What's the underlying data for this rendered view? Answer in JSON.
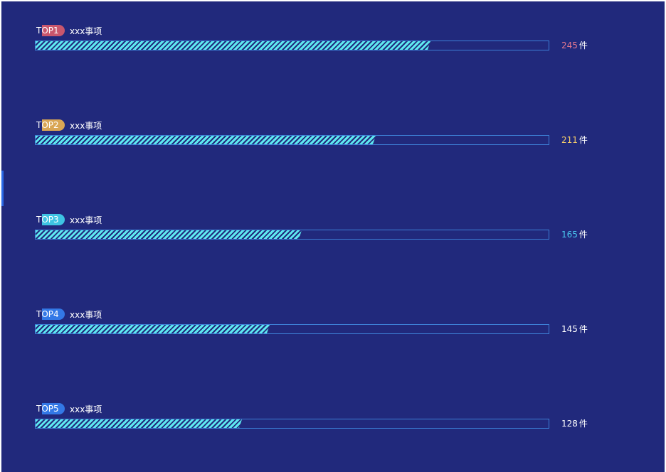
{
  "chart_data": {
    "type": "bar",
    "orientation": "horizontal",
    "categories": [
      "TOP1",
      "TOP2",
      "TOP3",
      "TOP4",
      "TOP5"
    ],
    "names": [
      "xxx事项",
      "xxx事项",
      "xxx事项",
      "xxx事项",
      "xxx事项"
    ],
    "values": [
      245,
      211,
      165,
      145,
      128
    ],
    "unit": "件",
    "xlim": [
      0,
      318
    ],
    "badge_colors": [
      "#c9566d",
      "#d9a655",
      "#3ec4e3",
      "#3378e6",
      "#3378e6"
    ],
    "value_colors": [
      "#e5788f",
      "#f4cc6a",
      "#4ac9f0",
      "#ffffff",
      "#ffffff"
    ],
    "bar_fill_color": "#5ee9f0",
    "track_border_color": "#3d7fd6",
    "background_color": "#21297c"
  }
}
